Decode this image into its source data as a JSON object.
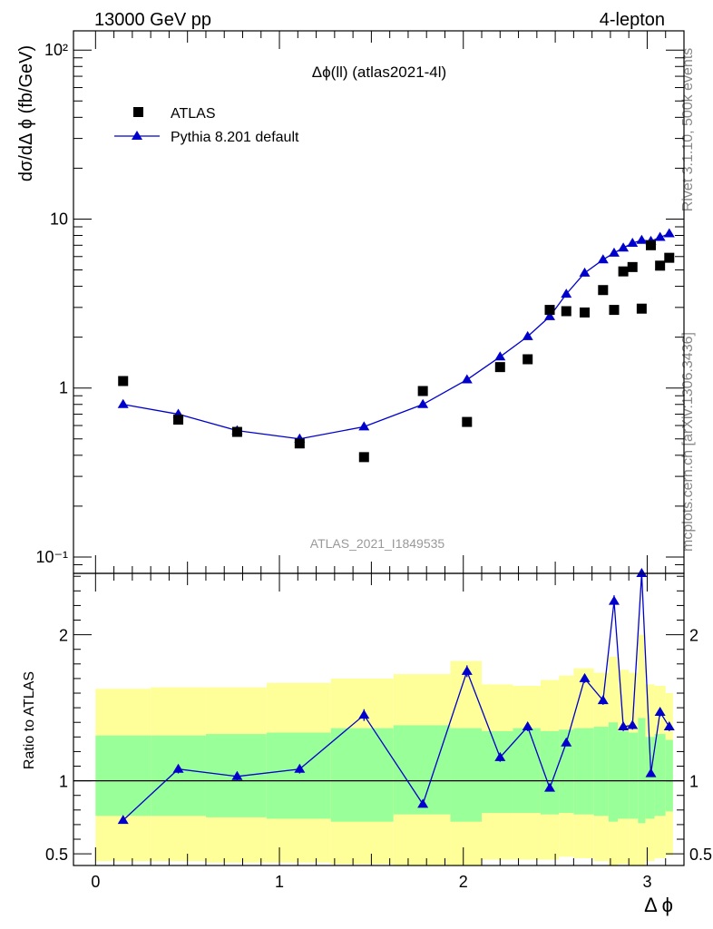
{
  "header": {
    "left": "13000 GeV pp",
    "right": "4-lepton"
  },
  "side_labels": {
    "rivet": "Rivet 3.1.10,  500k events",
    "mcplots": "mcplots.cern.ch [arXiv:1306.3436]"
  },
  "chart_data": [
    {
      "type": "scatter",
      "title": "Δϕ(ll) (atlas2021-4l)",
      "watermark": "ATLAS_2021_I1849535",
      "ylabel": "dσ/dΔ ϕ (fb/GeV)",
      "xlabel": "Δ ϕ",
      "yscale": "log",
      "xlim": [
        -0.12,
        3.2
      ],
      "ylim": [
        0.08,
        130
      ],
      "y_ticks": [
        {
          "value": 0.1,
          "label": "10⁻¹"
        },
        {
          "value": 1,
          "label": "1"
        },
        {
          "value": 10,
          "label": "10"
        },
        {
          "value": 100,
          "label": "10²"
        }
      ],
      "legend": {
        "position": "top-left"
      },
      "series": [
        {
          "name": "ATLAS",
          "style": "square-markers",
          "color": "#000000",
          "x": [
            0.15,
            0.45,
            0.77,
            1.11,
            1.46,
            1.78,
            2.02,
            2.2,
            2.35,
            2.47,
            2.56,
            2.66,
            2.76,
            2.82,
            2.87,
            2.92,
            2.97,
            3.02,
            3.07,
            3.12
          ],
          "y": [
            1.1,
            0.65,
            0.55,
            0.47,
            0.39,
            0.96,
            0.63,
            1.33,
            1.48,
            2.9,
            2.85,
            2.8,
            3.8,
            2.9,
            4.9,
            5.2,
            2.95,
            7.0,
            5.3,
            5.9
          ]
        },
        {
          "name": "Pythia 8.201 default",
          "style": "line-triangles",
          "color": "#0000cc",
          "x": [
            0.15,
            0.45,
            0.77,
            1.11,
            1.46,
            1.78,
            2.02,
            2.2,
            2.35,
            2.47,
            2.56,
            2.66,
            2.76,
            2.82,
            2.87,
            2.92,
            2.97,
            3.02,
            3.07,
            3.12
          ],
          "y": [
            0.8,
            0.7,
            0.56,
            0.5,
            0.59,
            0.8,
            1.12,
            1.53,
            2.02,
            2.65,
            3.6,
            4.8,
            5.75,
            6.3,
            6.75,
            7.2,
            7.5,
            7.4,
            7.8,
            8.2
          ]
        }
      ]
    },
    {
      "type": "line",
      "ylabel": "Ratio to ATLAS",
      "xlabel": "Δ ϕ",
      "xlim": [
        -0.12,
        3.2
      ],
      "ylim": [
        0.42,
        2.42
      ],
      "reference_line": 1,
      "x_ticks": [
        0,
        1,
        2,
        3
      ],
      "y_ticks": [
        0.5,
        1,
        2
      ],
      "bands": {
        "bins": [
          [
            0.0,
            0.3
          ],
          [
            0.3,
            0.6
          ],
          [
            0.6,
            0.93
          ],
          [
            0.93,
            1.28
          ],
          [
            1.28,
            1.62
          ],
          [
            1.62,
            1.93
          ],
          [
            1.93,
            2.1
          ],
          [
            2.1,
            2.27
          ],
          [
            2.27,
            2.42
          ],
          [
            2.42,
            2.52
          ],
          [
            2.52,
            2.6
          ],
          [
            2.6,
            2.71
          ],
          [
            2.71,
            2.79
          ],
          [
            2.79,
            2.84
          ],
          [
            2.84,
            2.9
          ],
          [
            2.9,
            2.95
          ],
          [
            2.95,
            2.99
          ],
          [
            2.99,
            3.04
          ],
          [
            3.04,
            3.1
          ],
          [
            3.1,
            3.14
          ]
        ],
        "green": {
          "color": "#99ff99",
          "low": [
            0.76,
            0.76,
            0.75,
            0.74,
            0.72,
            0.77,
            0.72,
            0.78,
            0.78,
            0.77,
            0.78,
            0.77,
            0.76,
            0.72,
            0.74,
            0.74,
            0.71,
            0.74,
            0.76,
            0.79
          ],
          "high": [
            1.31,
            1.31,
            1.32,
            1.33,
            1.36,
            1.38,
            1.36,
            1.34,
            1.36,
            1.34,
            1.35,
            1.36,
            1.37,
            1.4,
            1.34,
            1.33,
            1.43,
            1.3,
            1.32,
            1.28
          ]
        },
        "yellow": {
          "color": "#ffff99",
          "low": [
            0.45,
            0.45,
            0.44,
            0.44,
            0.43,
            0.42,
            0.42,
            0.46,
            0.46,
            0.46,
            0.48,
            0.47,
            0.45,
            0.42,
            0.43,
            0.42,
            0.42,
            0.45,
            0.47,
            0.49
          ],
          "high": [
            1.63,
            1.64,
            1.64,
            1.67,
            1.7,
            1.73,
            1.82,
            1.66,
            1.65,
            1.69,
            1.72,
            1.77,
            1.74,
            1.85,
            1.76,
            1.74,
            2.0,
            1.66,
            1.65,
            1.6
          ]
        }
      },
      "series": [
        {
          "name": "Pythia 8.201 default",
          "color": "#0000cc",
          "x": [
            0.15,
            0.45,
            0.77,
            1.11,
            1.46,
            1.78,
            2.02,
            2.2,
            2.35,
            2.47,
            2.56,
            2.66,
            2.76,
            2.82,
            2.87,
            2.92,
            2.97,
            3.02,
            3.07,
            3.12
          ],
          "y": [
            0.73,
            1.08,
            1.03,
            1.08,
            1.45,
            0.84,
            1.75,
            1.16,
            1.37,
            0.95,
            1.26,
            1.7,
            1.55,
            2.23,
            1.37,
            1.38,
            2.5,
            1.05,
            1.47,
            1.37
          ],
          "err": [
            0.02,
            0.03,
            0.03,
            0.03,
            0.04,
            0.02,
            0.04,
            0.03,
            0.03,
            0.02,
            0.02,
            0.03,
            0.03,
            0.04,
            0.03,
            0.03,
            0.05,
            0.02,
            0.03,
            0.03
          ]
        }
      ]
    }
  ]
}
